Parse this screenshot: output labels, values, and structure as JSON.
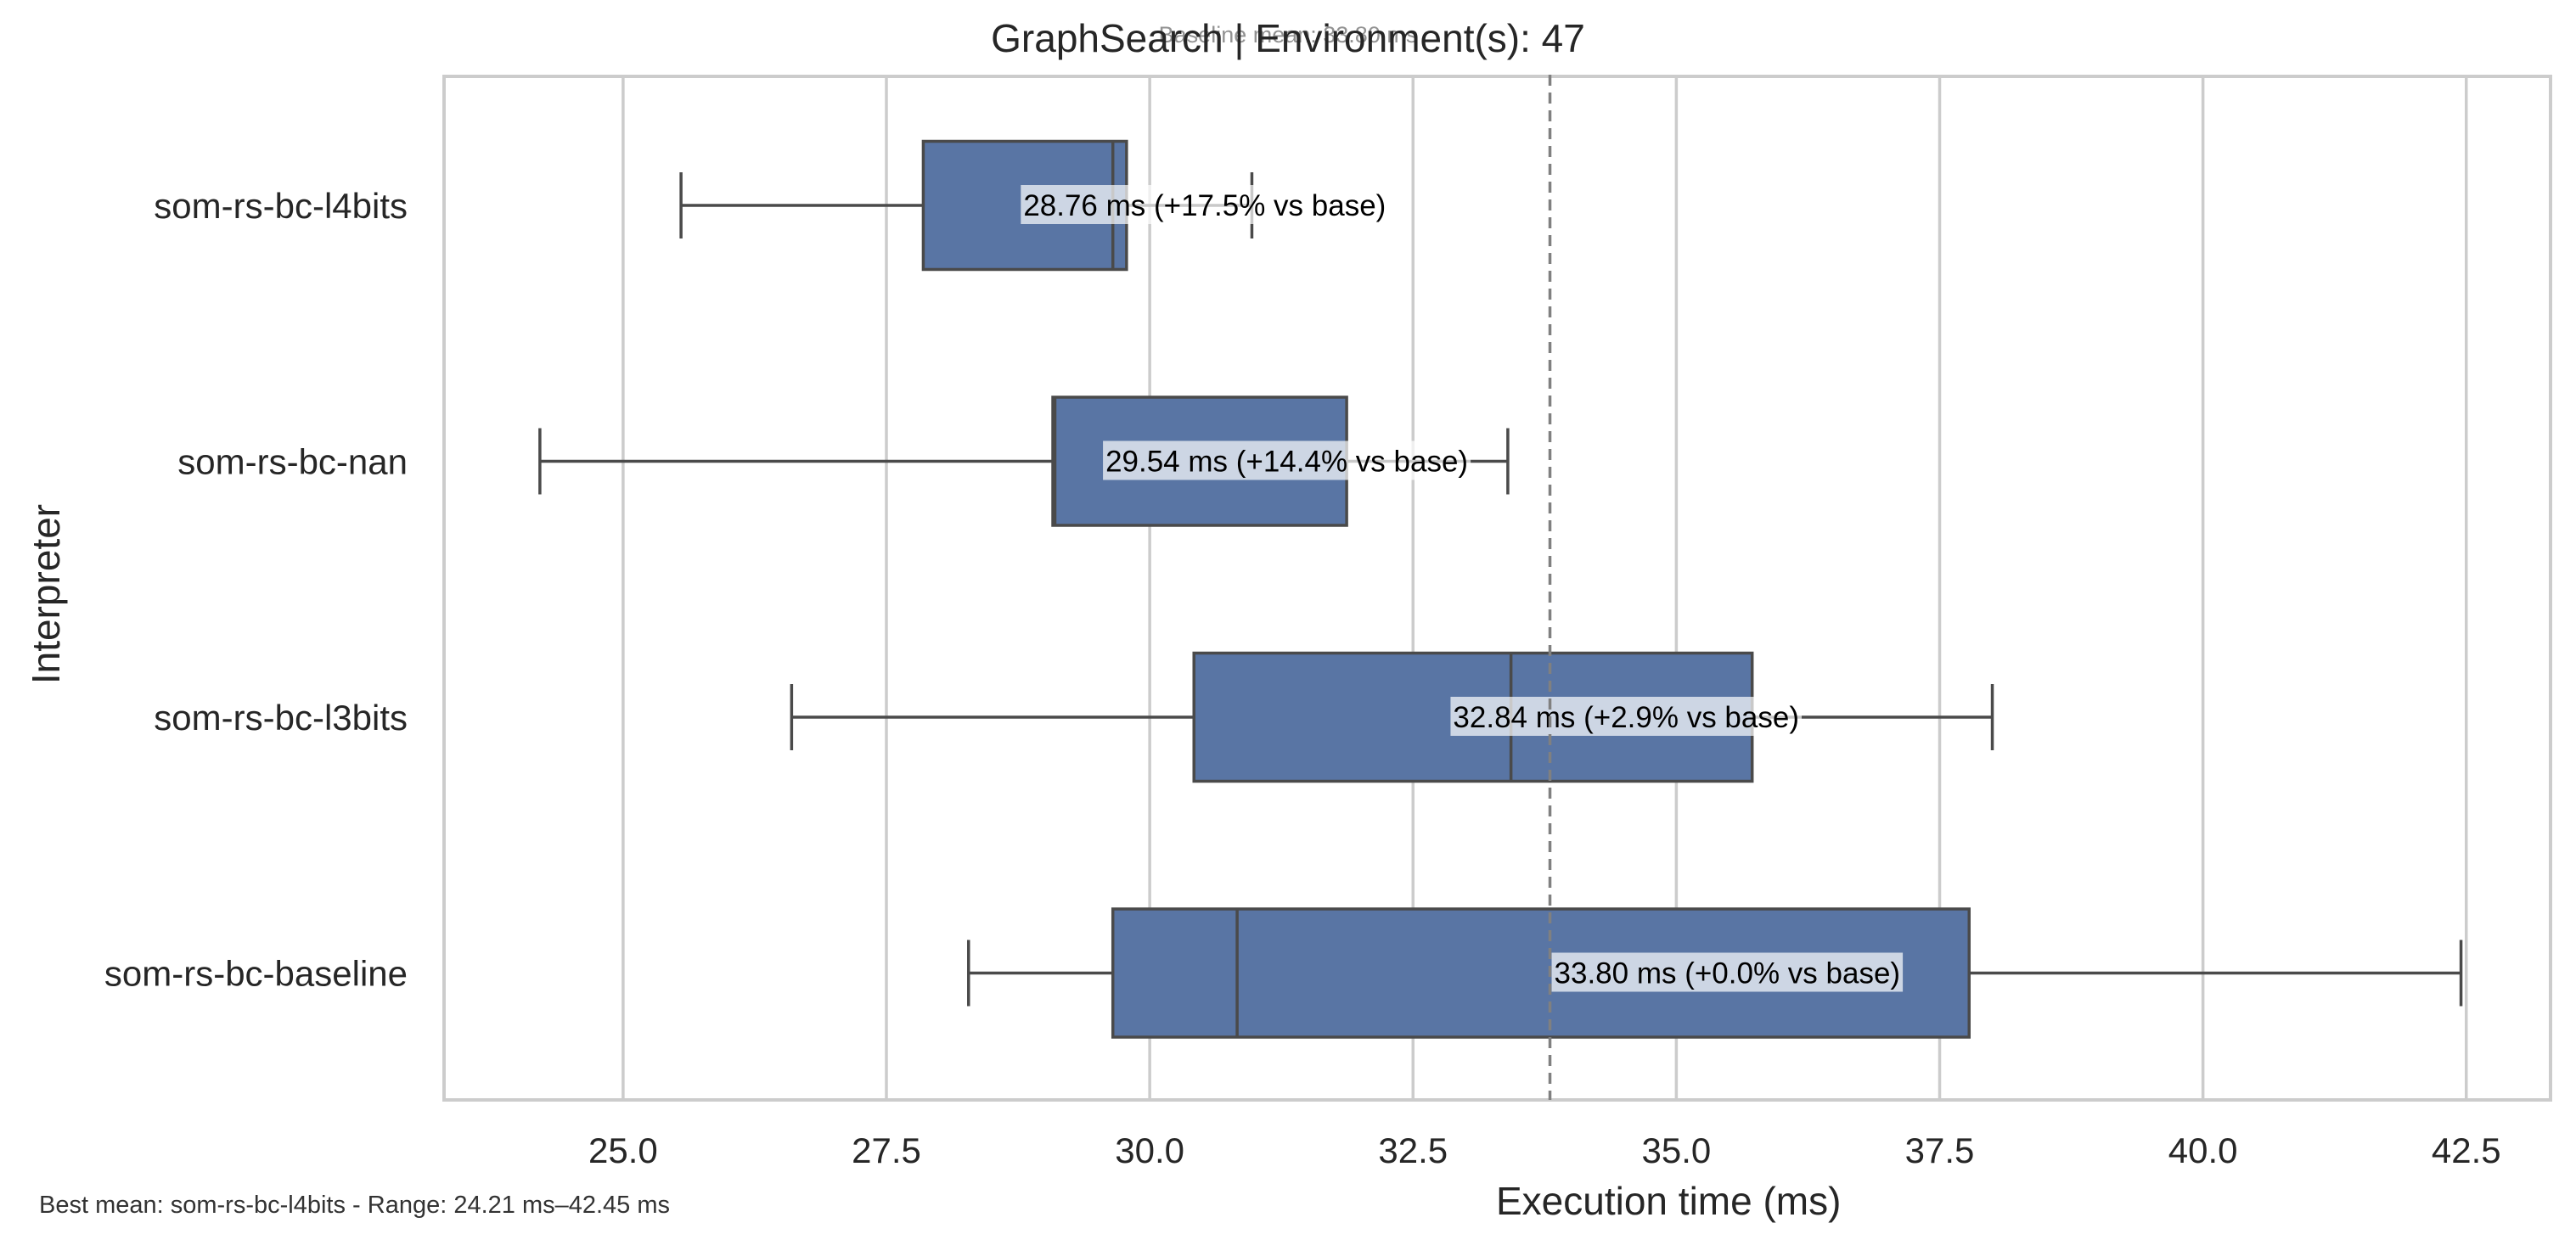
{
  "chart_data": {
    "type": "boxplot",
    "title": "GraphSearch | Environment(s): 47",
    "baseline_note": "Baseline mean: 33.80 ms",
    "xlabel": "Execution time (ms)",
    "ylabel": "Interpreter",
    "xlim": [
      23.3,
      43.3
    ],
    "xticks": [
      25.0,
      27.5,
      30.0,
      32.5,
      35.0,
      37.5,
      40.0,
      42.5
    ],
    "xtick_labels": [
      "25.0",
      "27.5",
      "30.0",
      "32.5",
      "35.0",
      "37.5",
      "40.0",
      "42.5"
    ],
    "grid": "vertical",
    "baseline_mean": 33.8,
    "box_color": "#5975a4",
    "footer": "Best mean: som-rs-bc-l4bits - Range: 24.21 ms–42.45 ms",
    "series": [
      {
        "name": "som-rs-bc-l4bits",
        "whisker_low": 25.55,
        "q1": 27.85,
        "median": 29.65,
        "q3": 29.78,
        "whisker_high": 30.97,
        "mean": 28.76,
        "label": "28.76 ms  (+17.5% vs base)"
      },
      {
        "name": "som-rs-bc-nan",
        "whisker_low": 24.21,
        "q1": 29.08,
        "median": 29.1,
        "q3": 31.87,
        "whisker_high": 33.4,
        "mean": 29.54,
        "label": "29.54 ms  (+14.4% vs base)"
      },
      {
        "name": "som-rs-bc-l3bits",
        "whisker_low": 26.6,
        "q1": 30.42,
        "median": 33.43,
        "q3": 35.72,
        "whisker_high": 38.0,
        "mean": 32.84,
        "label": "32.84 ms  (+2.9% vs base)"
      },
      {
        "name": "som-rs-bc-baseline",
        "whisker_low": 28.28,
        "q1": 29.65,
        "median": 30.83,
        "q3": 37.78,
        "whisker_high": 42.45,
        "mean": 33.8,
        "label": "33.80 ms  (+0.0% vs base)"
      }
    ]
  }
}
